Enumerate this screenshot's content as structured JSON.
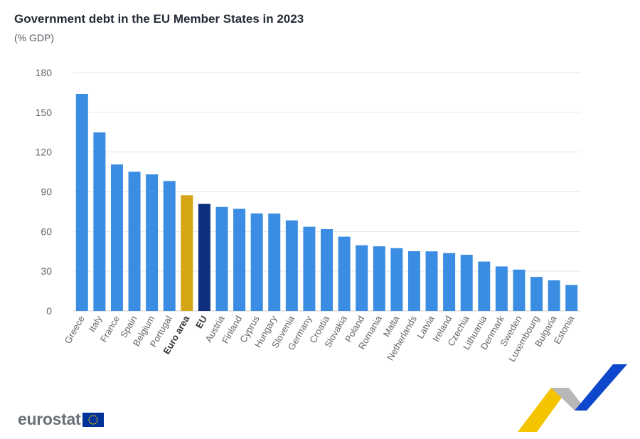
{
  "chart_data": {
    "type": "bar",
    "title": "Government debt in the EU Member States in 2023",
    "subtitle": "(% GDP)",
    "xlabel": "",
    "ylabel": "",
    "ylim": [
      0,
      180
    ],
    "yticks": [
      0,
      30,
      60,
      90,
      120,
      150,
      180
    ],
    "grid": true,
    "categories": [
      "Greece",
      "Italy",
      "France",
      "Spain",
      "Belgium",
      "Portugal",
      "Euro area",
      "EU",
      "Austria",
      "Finland",
      "Cyprus",
      "Hungary",
      "Slovenia",
      "Germany",
      "Croatia",
      "Slovakia",
      "Poland",
      "Romania",
      "Malta",
      "Netherlands",
      "Latvia",
      "Ireland",
      "Czechia",
      "Lithuania",
      "Denmark",
      "Sweden",
      "Luxembourg",
      "Bulgaria",
      "Estonia"
    ],
    "values": [
      163.9,
      134.8,
      110.6,
      105.1,
      103.1,
      98.1,
      87.4,
      80.8,
      78.6,
      77.1,
      73.6,
      73.5,
      68.4,
      63.6,
      61.8,
      56.1,
      49.6,
      48.8,
      47.4,
      45.1,
      45.0,
      43.7,
      42.4,
      37.3,
      33.6,
      31.2,
      25.7,
      23.1,
      19.6
    ],
    "bold_categories": [
      "Euro area",
      "EU"
    ],
    "colors": {
      "default": "#3a8de2",
      "Euro area": "#d4a514",
      "EU": "#0e2f7e"
    }
  },
  "branding": {
    "logo_text": "eurostat",
    "flag_icon": "eu-flag-icon",
    "decoration": "eurostat-swoosh-icon",
    "swoosh_colors": [
      "#f5c400",
      "#b3b3b3",
      "#0e47cb"
    ]
  },
  "colors": {
    "title": "#262b38",
    "axis_text": "#666666",
    "grid": "#e6e6e6",
    "axis_line": "#cccccc"
  }
}
